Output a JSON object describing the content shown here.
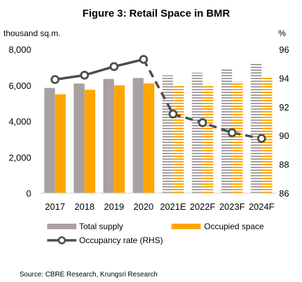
{
  "chart_data": {
    "type": "bar",
    "title": "Figure 3: Retail Space in BMR",
    "ylabel_left": "thousand sq.m.",
    "ylabel_right": "%",
    "categories": [
      "2017",
      "2018",
      "2019",
      "2020",
      "2021E",
      "2022F",
      "2023F",
      "2024F"
    ],
    "forecast_start_index": 4,
    "y_left": {
      "min": 0,
      "max": 8000,
      "ticks": [
        "0",
        "2,000",
        "4,000",
        "6,000",
        "8,000"
      ]
    },
    "y_right": {
      "min": 86,
      "max": 96,
      "ticks": [
        "86",
        "88",
        "90",
        "92",
        "94",
        "96"
      ]
    },
    "series": [
      {
        "name": "Total supply",
        "type": "bar",
        "axis": "left",
        "color": "#A9A0A0",
        "values": [
          5850,
          6100,
          6350,
          6400,
          6550,
          6700,
          6950,
          7250
        ]
      },
      {
        "name": "Occupied space",
        "type": "bar",
        "axis": "left",
        "color": "#FFA500",
        "values": [
          5500,
          5750,
          6000,
          6100,
          6000,
          6000,
          6200,
          6450
        ]
      },
      {
        "name": "Occupancy rate (RHS)",
        "type": "line",
        "axis": "right",
        "color": "#4D4D4D",
        "values": [
          93.9,
          94.2,
          94.8,
          95.3,
          91.5,
          90.9,
          90.2,
          89.8
        ]
      }
    ],
    "legend_position": "bottom",
    "source": "Source: CBRE Research, Krungsri Research"
  }
}
